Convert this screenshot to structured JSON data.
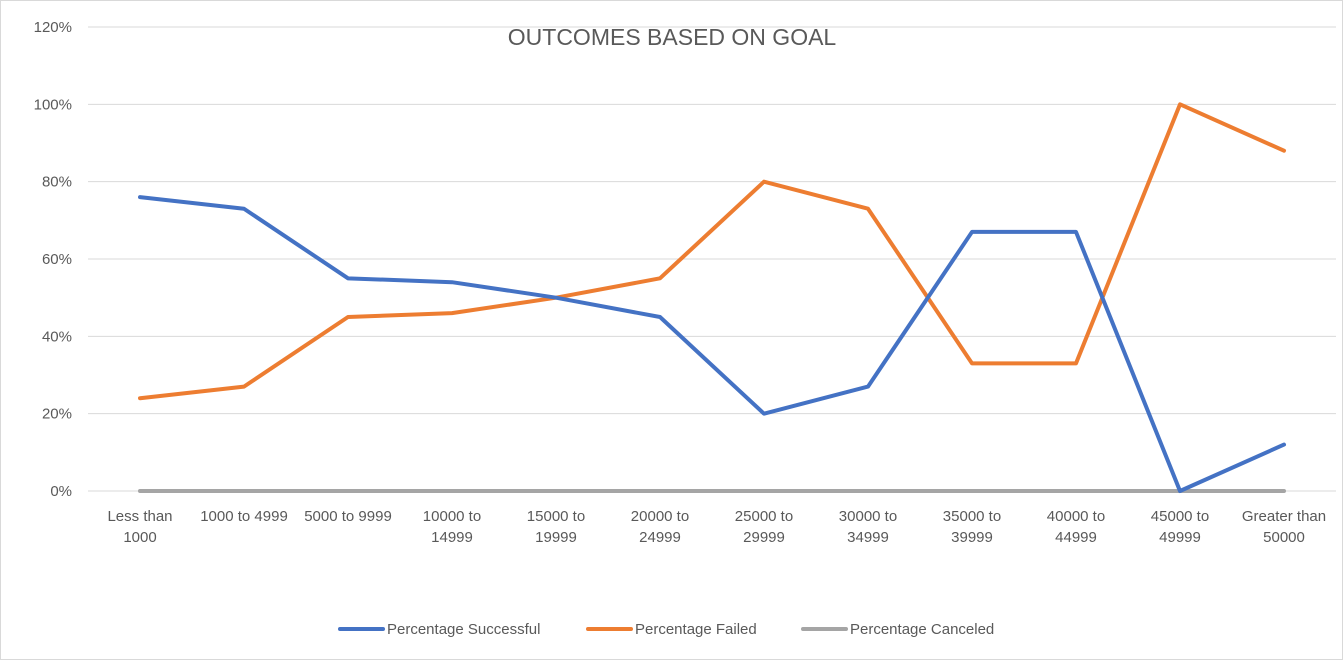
{
  "chart_data": {
    "type": "line",
    "title": "OUTCOMES BASED ON GOAL",
    "xlabel": "",
    "ylabel": "",
    "ylim": [
      0,
      1.2
    ],
    "y_ticks": [
      "0%",
      "20%",
      "40%",
      "60%",
      "80%",
      "100%",
      "120%"
    ],
    "grid": true,
    "legend_position": "bottom",
    "categories": [
      [
        "Less than",
        "1000"
      ],
      [
        "1000 to 4999"
      ],
      [
        "5000 to 9999"
      ],
      [
        "10000 to",
        "14999"
      ],
      [
        "15000 to",
        "19999"
      ],
      [
        "20000 to",
        "24999"
      ],
      [
        "25000 to",
        "29999"
      ],
      [
        "30000 to",
        "34999"
      ],
      [
        "35000 to",
        "39999"
      ],
      [
        "40000 to",
        "44999"
      ],
      [
        "45000 to",
        "49999"
      ],
      [
        "Greater than",
        "50000"
      ]
    ],
    "series": [
      {
        "name": "Percentage Successful",
        "color": "#4472c4",
        "values": [
          0.76,
          0.73,
          0.55,
          0.54,
          0.5,
          0.45,
          0.2,
          0.27,
          0.67,
          0.67,
          0.0,
          0.12
        ]
      },
      {
        "name": "Percentage Failed",
        "color": "#ed7d31",
        "values": [
          0.24,
          0.27,
          0.45,
          0.46,
          0.5,
          0.55,
          0.8,
          0.73,
          0.33,
          0.33,
          1.0,
          0.88
        ]
      },
      {
        "name": "Percentage Canceled",
        "color": "#a5a5a5",
        "values": [
          0,
          0,
          0,
          0,
          0,
          0,
          0,
          0,
          0,
          0,
          0,
          0
        ]
      }
    ]
  }
}
